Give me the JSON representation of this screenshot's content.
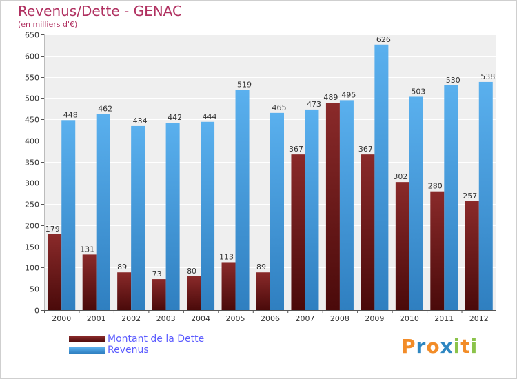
{
  "header": {
    "title": "Revenus/Dette - GENAC",
    "subtitle": "(en milliers d'€)"
  },
  "chart_data": {
    "type": "bar",
    "categories": [
      "2000",
      "2001",
      "2002",
      "2003",
      "2004",
      "2005",
      "2006",
      "2007",
      "2008",
      "2009",
      "2010",
      "2011",
      "2012"
    ],
    "series": [
      {
        "name": "Montant de la Dette",
        "values": [
          179,
          131,
          89,
          73,
          80,
          113,
          89,
          367,
          489,
          367,
          302,
          280,
          257
        ],
        "color": "#7a1a1a"
      },
      {
        "name": "Revenus",
        "values": [
          448,
          462,
          434,
          442,
          444,
          519,
          465,
          473,
          495,
          626,
          503,
          530,
          538
        ],
        "color": "#4aa3e6"
      }
    ],
    "yticks": [
      0,
      50,
      100,
      150,
      200,
      250,
      300,
      350,
      400,
      450,
      500,
      550,
      600,
      650
    ],
    "ylim": [
      0,
      650
    ],
    "grid": true,
    "legend_position": "bottom-left"
  },
  "legend": {
    "items": [
      {
        "label": "Montant de la Dette",
        "color": "#7a1a1a"
      },
      {
        "label": "Revenus",
        "color": "#4aa3e6"
      }
    ]
  },
  "logo": {
    "letters": [
      "P",
      "r",
      "o",
      "x",
      "i",
      "t",
      "i"
    ],
    "colors": [
      "#f28c28",
      "#2e86c1",
      "#f28c28",
      "#2e86c1",
      "#8bc34a",
      "#f28c28",
      "#8bc34a"
    ]
  }
}
